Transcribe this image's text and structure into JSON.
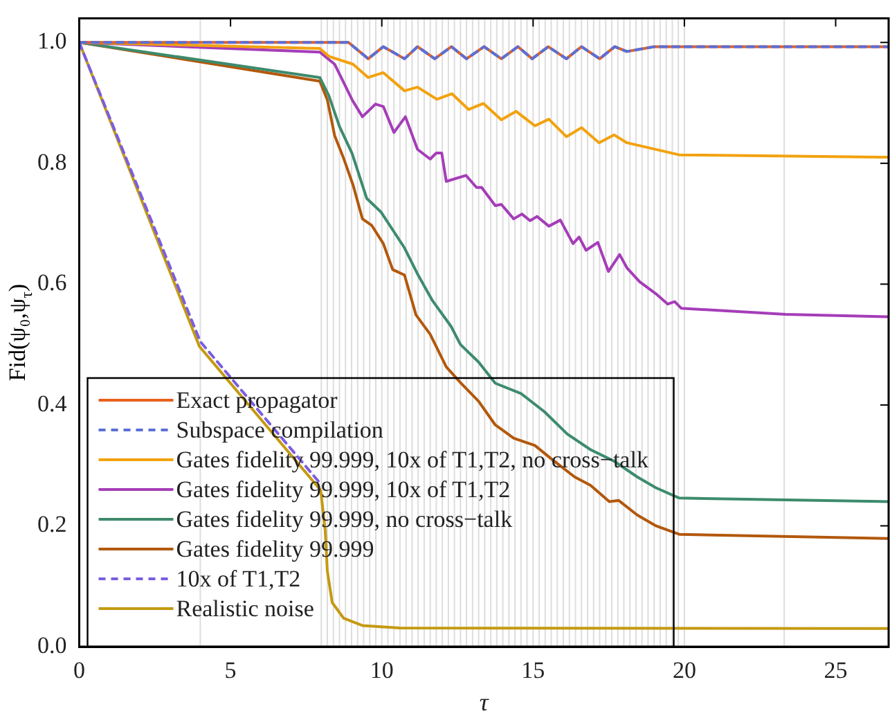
{
  "chart_data": {
    "type": "line",
    "xlabel": "τ",
    "ylabel": "Fid(ψ₀,ψ$_{τ}$)",
    "xlim": [
      0,
      26.75
    ],
    "ylim": [
      0,
      1.04
    ],
    "xticks": [
      0,
      5,
      10,
      15,
      20,
      25
    ],
    "yticks": [
      {
        "value": 0,
        "label": "0.0"
      },
      {
        "value": 0.2,
        "label": "0.2"
      },
      {
        "value": 0.4,
        "label": "0.4"
      },
      {
        "value": 0.6,
        "label": "0.6"
      },
      {
        "value": 0.8,
        "label": "0.8"
      },
      {
        "value": 1,
        "label": "1.0"
      }
    ],
    "grid": false,
    "legend": "bottom left",
    "marker": "none",
    "series": [
      {
        "name": "Exact propagator",
        "color": "#e8601c",
        "line_style": "solid",
        "x": [
          0,
          8.9,
          9.55,
          10.05,
          10.75,
          11.18,
          11.75,
          12.3,
          12.8,
          13.38,
          13.95,
          14.5,
          14.97,
          15.5,
          16.1,
          16.6,
          17.2,
          17.7,
          18.1,
          19,
          26.75
        ],
        "values": [
          1,
          1,
          0.973,
          0.993,
          0.973,
          0.993,
          0.973,
          0.993,
          0.973,
          0.993,
          0.973,
          0.993,
          0.973,
          0.993,
          0.973,
          0.993,
          0.973,
          0.993,
          0.985,
          0.993,
          0.993
        ]
      },
      {
        "name": "Subspace compilation",
        "color": "#5b6fd6",
        "line_style": "dashed",
        "x": [
          0,
          8.9,
          9.55,
          10.05,
          10.75,
          11.18,
          11.75,
          12.3,
          12.8,
          13.38,
          13.95,
          14.5,
          14.97,
          15.5,
          16.1,
          16.6,
          17.2,
          17.7,
          18.1,
          19,
          26.75
        ],
        "values": [
          1,
          1,
          0.973,
          0.993,
          0.973,
          0.993,
          0.973,
          0.993,
          0.973,
          0.993,
          0.973,
          0.993,
          0.973,
          0.993,
          0.973,
          0.993,
          0.973,
          0.993,
          0.985,
          0.993,
          0.993
        ]
      },
      {
        "name": "Gates fidelity 99.999, 10x of T1,T2, no cross−talk",
        "color": "#f2a20f",
        "line_style": "solid",
        "x": [
          0,
          7.95,
          8.25,
          9.05,
          9.55,
          10.05,
          10.75,
          11.18,
          11.82,
          12.32,
          12.87,
          13.36,
          13.95,
          14.44,
          15.06,
          15.52,
          16.1,
          16.6,
          17.18,
          17.68,
          18.1,
          19.83,
          26.75
        ],
        "values": [
          1,
          0.99,
          0.977,
          0.964,
          0.942,
          0.95,
          0.92,
          0.926,
          0.906,
          0.915,
          0.889,
          0.899,
          0.872,
          0.886,
          0.862,
          0.873,
          0.844,
          0.859,
          0.834,
          0.847,
          0.834,
          0.814,
          0.81
        ]
      },
      {
        "name": "Gates fidelity 99.999, 10x of T1,T2",
        "color": "#a53db8",
        "line_style": "solid",
        "x": [
          0,
          7.95,
          8.44,
          9.02,
          9.36,
          9.79,
          10.05,
          10.4,
          10.78,
          11.18,
          11.6,
          11.8,
          11.98,
          12.13,
          12.78,
          13.13,
          13.3,
          13.75,
          13.95,
          14.36,
          14.63,
          14.9,
          15.13,
          15.52,
          15.9,
          16.32,
          16.52,
          16.75,
          17.14,
          17.49,
          17.86,
          18.1,
          18.52,
          19.06,
          19.45,
          19.68,
          19.9,
          23.34,
          26.75
        ],
        "values": [
          1,
          0.984,
          0.964,
          0.905,
          0.877,
          0.898,
          0.894,
          0.851,
          0.877,
          0.823,
          0.807,
          0.817,
          0.817,
          0.77,
          0.78,
          0.76,
          0.76,
          0.73,
          0.732,
          0.708,
          0.716,
          0.705,
          0.712,
          0.696,
          0.706,
          0.667,
          0.678,
          0.656,
          0.669,
          0.621,
          0.649,
          0.627,
          0.604,
          0.584,
          0.567,
          0.571,
          0.56,
          0.55,
          0.546
        ]
      },
      {
        "name": "Gates fidelity 99.999, no cross−talk",
        "color": "#3d8b6d",
        "line_style": "solid",
        "x": [
          0,
          7.95,
          8.25,
          8.6,
          9.02,
          9.5,
          9.98,
          10.75,
          11.2,
          11.67,
          12.29,
          12.6,
          13.2,
          13.75,
          14.6,
          15.37,
          16.13,
          16.9,
          17.68,
          18.44,
          19.06,
          19.83,
          26.75
        ],
        "values": [
          1,
          0.942,
          0.912,
          0.861,
          0.816,
          0.742,
          0.719,
          0.66,
          0.615,
          0.573,
          0.53,
          0.5,
          0.471,
          0.436,
          0.419,
          0.389,
          0.352,
          0.326,
          0.307,
          0.281,
          0.263,
          0.246,
          0.24
        ]
      },
      {
        "name": "Gates fidelity 99.999",
        "color": "#b3580c",
        "line_style": "solid",
        "x": [
          0,
          7.95,
          8.2,
          8.44,
          8.74,
          9.05,
          9.36,
          9.67,
          10.05,
          10.36,
          10.75,
          11.13,
          11.6,
          12.13,
          12.6,
          13.2,
          13.75,
          14.36,
          15.06,
          15.6,
          16.37,
          16.9,
          17.52,
          17.83,
          18.44,
          19.06,
          19.83,
          26.75
        ],
        "values": [
          1,
          0.936,
          0.905,
          0.846,
          0.808,
          0.764,
          0.708,
          0.697,
          0.667,
          0.624,
          0.615,
          0.549,
          0.517,
          0.463,
          0.437,
          0.406,
          0.367,
          0.345,
          0.333,
          0.311,
          0.281,
          0.267,
          0.24,
          0.242,
          0.218,
          0.2,
          0.186,
          0.179
        ]
      },
      {
        "name": "10x of T1,T2",
        "color": "#7b5de0",
        "line_style": "dashed",
        "x": [
          0,
          4,
          7.9
        ],
        "values": [
          1,
          0.505,
          0.274
        ]
      },
      {
        "name": "Realistic noise",
        "color": "#c49a12",
        "line_style": "solid",
        "x": [
          0,
          3.97,
          7.98,
          8.13,
          8.2,
          8.36,
          8.74,
          9.36,
          10.6,
          26.75
        ],
        "values": [
          1,
          0.497,
          0.259,
          0.192,
          0.125,
          0.073,
          0.047,
          0.035,
          0.031,
          0.03
        ]
      }
    ],
    "ref_lines": [
      {
        "axis": "x",
        "value": 4,
        "color": "#dddddd"
      },
      {
        "axis": "x",
        "value": 8,
        "color": "#dddddd"
      },
      {
        "axis": "x",
        "value": 8.2,
        "color": "#dddddd"
      },
      {
        "axis": "x",
        "value": 8.4,
        "color": "#dddddd"
      },
      {
        "axis": "x",
        "value": 8.6,
        "color": "#dddddd"
      },
      {
        "axis": "x",
        "value": 8.8,
        "color": "#dddddd"
      },
      {
        "axis": "x",
        "value": 9,
        "color": "#dddddd"
      },
      {
        "axis": "x",
        "value": 9.2,
        "color": "#dddddd"
      },
      {
        "axis": "x",
        "value": 9.4,
        "color": "#dddddd"
      },
      {
        "axis": "x",
        "value": 9.6,
        "color": "#dddddd"
      },
      {
        "axis": "x",
        "value": 9.8,
        "color": "#dddddd"
      },
      {
        "axis": "x",
        "value": 10,
        "color": "#dddddd"
      },
      {
        "axis": "x",
        "value": 10.2,
        "color": "#dddddd"
      },
      {
        "axis": "x",
        "value": 10.4,
        "color": "#dddddd"
      },
      {
        "axis": "x",
        "value": 10.6,
        "color": "#dddddd"
      },
      {
        "axis": "x",
        "value": 10.8,
        "color": "#dddddd"
      },
      {
        "axis": "x",
        "value": 11,
        "color": "#dddddd"
      },
      {
        "axis": "x",
        "value": 11.2,
        "color": "#dddddd"
      },
      {
        "axis": "x",
        "value": 11.4,
        "color": "#dddddd"
      },
      {
        "axis": "x",
        "value": 11.6,
        "color": "#dddddd"
      },
      {
        "axis": "x",
        "value": 11.8,
        "color": "#dddddd"
      },
      {
        "axis": "x",
        "value": 12,
        "color": "#dddddd"
      },
      {
        "axis": "x",
        "value": 12.2,
        "color": "#dddddd"
      },
      {
        "axis": "x",
        "value": 12.4,
        "color": "#dddddd"
      },
      {
        "axis": "x",
        "value": 12.6,
        "color": "#dddddd"
      },
      {
        "axis": "x",
        "value": 12.8,
        "color": "#dddddd"
      },
      {
        "axis": "x",
        "value": 13,
        "color": "#dddddd"
      },
      {
        "axis": "x",
        "value": 13.2,
        "color": "#dddddd"
      },
      {
        "axis": "x",
        "value": 13.4,
        "color": "#dddddd"
      },
      {
        "axis": "x",
        "value": 13.6,
        "color": "#dddddd"
      },
      {
        "axis": "x",
        "value": 13.8,
        "color": "#dddddd"
      },
      {
        "axis": "x",
        "value": 14,
        "color": "#dddddd"
      },
      {
        "axis": "x",
        "value": 14.2,
        "color": "#dddddd"
      },
      {
        "axis": "x",
        "value": 14.4,
        "color": "#dddddd"
      },
      {
        "axis": "x",
        "value": 14.6,
        "color": "#dddddd"
      },
      {
        "axis": "x",
        "value": 14.8,
        "color": "#dddddd"
      },
      {
        "axis": "x",
        "value": 15,
        "color": "#dddddd"
      },
      {
        "axis": "x",
        "value": 15.2,
        "color": "#dddddd"
      },
      {
        "axis": "x",
        "value": 15.4,
        "color": "#dddddd"
      },
      {
        "axis": "x",
        "value": 15.6,
        "color": "#dddddd"
      },
      {
        "axis": "x",
        "value": 15.8,
        "color": "#dddddd"
      },
      {
        "axis": "x",
        "value": 16,
        "color": "#dddddd"
      },
      {
        "axis": "x",
        "value": 16.2,
        "color": "#dddddd"
      },
      {
        "axis": "x",
        "value": 16.4,
        "color": "#dddddd"
      },
      {
        "axis": "x",
        "value": 16.6,
        "color": "#dddddd"
      },
      {
        "axis": "x",
        "value": 16.8,
        "color": "#dddddd"
      },
      {
        "axis": "x",
        "value": 17,
        "color": "#dddddd"
      },
      {
        "axis": "x",
        "value": 17.2,
        "color": "#dddddd"
      },
      {
        "axis": "x",
        "value": 17.4,
        "color": "#dddddd"
      },
      {
        "axis": "x",
        "value": 17.6,
        "color": "#dddddd"
      },
      {
        "axis": "x",
        "value": 17.8,
        "color": "#dddddd"
      },
      {
        "axis": "x",
        "value": 18,
        "color": "#dddddd"
      },
      {
        "axis": "x",
        "value": 18.2,
        "color": "#dddddd"
      },
      {
        "axis": "x",
        "value": 18.4,
        "color": "#dddddd"
      },
      {
        "axis": "x",
        "value": 18.6,
        "color": "#dddddd"
      },
      {
        "axis": "x",
        "value": 18.8,
        "color": "#dddddd"
      },
      {
        "axis": "x",
        "value": 19,
        "color": "#dddddd"
      },
      {
        "axis": "x",
        "value": 19.2,
        "color": "#dddddd"
      },
      {
        "axis": "x",
        "value": 19.4,
        "color": "#dddddd"
      },
      {
        "axis": "x",
        "value": 19.6,
        "color": "#dddddd"
      },
      {
        "axis": "x",
        "value": 19.8,
        "color": "#dddddd"
      },
      {
        "axis": "x",
        "value": 20,
        "color": "#dddddd"
      },
      {
        "axis": "x",
        "value": 23.3,
        "color": "#dddddd"
      }
    ]
  }
}
